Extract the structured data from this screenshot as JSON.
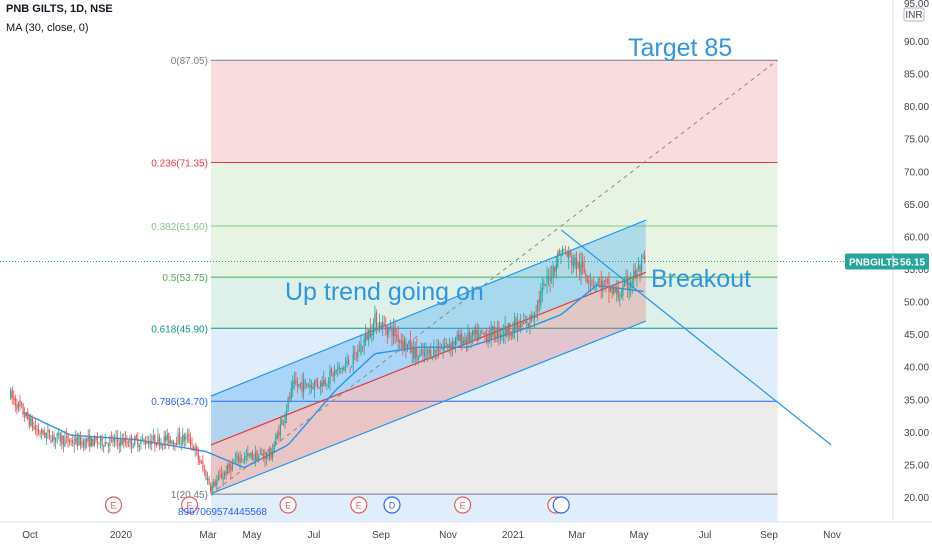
{
  "header": {
    "symbol_line": "PNB GILTS, 1D, NSE",
    "indicator_line": "MA (30, close, 0)"
  },
  "currency": "INR",
  "last_price_badge": {
    "symbol": "PNBGILTS",
    "price": "56.15",
    "value": 56.15
  },
  "y_axis": {
    "ticks": [
      20,
      25,
      30,
      35,
      40,
      45,
      50,
      55,
      60,
      65,
      70,
      75,
      80,
      85,
      90
    ],
    "tick_labels": [
      "20.00",
      "25.00",
      "30.00",
      "35.00",
      "40.00",
      "45.00",
      "50.00",
      "55.00",
      "60.00",
      "65.00",
      "70.00",
      "75.00",
      "80.00",
      "85.00",
      "90.00"
    ],
    "top_partial_label": "95.00"
  },
  "x_axis": {
    "labels": [
      "Oct",
      "2020",
      "Mar",
      "May",
      "Jul",
      "Sep",
      "Nov",
      "2021",
      "Mar",
      "May",
      "Jul",
      "Sep",
      "Nov"
    ]
  },
  "fib_levels": [
    {
      "ratio": "0",
      "price": 87.05,
      "label": "0(87.05)",
      "color": "#787b86"
    },
    {
      "ratio": "0.236",
      "price": 71.35,
      "label": "0.236(71.35)",
      "color": "#f23645"
    },
    {
      "ratio": "0.382",
      "price": 61.6,
      "label": "0.382(61.60)",
      "color": "#81c784"
    },
    {
      "ratio": "0.5",
      "price": 53.75,
      "label": "0.5(53.75)",
      "color": "#4caf50"
    },
    {
      "ratio": "0.618",
      "price": 45.9,
      "label": "0.618(45.90)",
      "color": "#089981"
    },
    {
      "ratio": "0.786",
      "price": 34.7,
      "label": "0.786(34.70)",
      "color": "#2962ff"
    },
    {
      "ratio": "1",
      "price": 20.45,
      "label": "1(20.45)",
      "color": "#787b86"
    }
  ],
  "fib_zone_colors": [
    "#f7d2d3",
    "#dff0da",
    "#dff0da",
    "#d2ece3",
    "#d5e8fa",
    "#e6e6e6"
  ],
  "annotations": {
    "target": "Target 85",
    "trend": "Up trend going on",
    "breakout": "Breakout"
  },
  "events": {
    "earnings_glyph": "E",
    "dividend_glyph": "D",
    "earnings_color": "#e35c5c",
    "dividend_color": "#2962ff"
  },
  "footer_id": "8967069574445568",
  "colors": {
    "up": "#26a69a",
    "down": "#ef5350",
    "ma": "#2196f3",
    "channel_upper": "#2196f3",
    "channel_lower": "#e57373",
    "accent": "#2f96e0"
  },
  "chart_data": {
    "type": "candlestick",
    "symbol": "PNB GILTS",
    "interval": "1D",
    "exchange": "NSE",
    "indicator": "MA (30, close, 0)",
    "ylim": [
      18,
      96
    ],
    "grid": false,
    "series": [
      {
        "name": "PNB GILTS",
        "type": "price",
        "approx_close_path": [
          [
            "2019-09-20",
            35.5
          ],
          [
            "2019-10-15",
            30.0
          ],
          [
            "2019-11-15",
            28.5
          ],
          [
            "2019-12-15",
            28.5
          ],
          [
            "2020-01-15",
            28.5
          ],
          [
            "2020-02-15",
            28.8
          ],
          [
            "2020-03-05",
            29.0
          ],
          [
            "2020-03-25",
            21.5
          ],
          [
            "2020-04-20",
            26.0
          ],
          [
            "2020-05-20",
            26.5
          ],
          [
            "2020-06-10",
            37.0
          ],
          [
            "2020-07-05",
            37.5
          ],
          [
            "2020-08-05",
            41.0
          ],
          [
            "2020-08-25",
            47.0
          ],
          [
            "2020-09-10",
            45.5
          ],
          [
            "2020-10-05",
            41.5
          ],
          [
            "2020-11-10",
            44.0
          ],
          [
            "2020-12-10",
            45.0
          ],
          [
            "2021-01-15",
            46.5
          ],
          [
            "2021-02-15",
            58.0
          ],
          [
            "2021-03-15",
            53.5
          ],
          [
            "2021-04-10",
            51.0
          ],
          [
            "2021-05-05",
            56.15
          ]
        ]
      },
      {
        "name": "MA (30, close, 0)",
        "type": "line",
        "approx_values": [
          [
            "2019-10-01",
            33.0
          ],
          [
            "2019-11-15",
            29.5
          ],
          [
            "2020-01-15",
            28.8
          ],
          [
            "2020-03-20",
            27.0
          ],
          [
            "2020-04-25",
            24.5
          ],
          [
            "2020-06-05",
            28.0
          ],
          [
            "2020-07-20",
            36.5
          ],
          [
            "2020-08-25",
            42.0
          ],
          [
            "2020-10-05",
            43.0
          ],
          [
            "2020-11-20",
            43.0
          ],
          [
            "2021-01-15",
            46.0
          ],
          [
            "2021-02-15",
            48.0
          ],
          [
            "2021-03-20",
            52.5
          ],
          [
            "2021-05-05",
            51.5
          ]
        ]
      }
    ],
    "channel": {
      "lower_start": [
        "2020-03-25",
        20.5
      ],
      "lower_end": [
        "2021-05-05",
        47.0
      ],
      "mid_start": [
        "2020-03-25",
        28.0
      ],
      "mid_end": [
        "2021-05-05",
        54.5
      ],
      "upper_start": [
        "2020-03-25",
        35.5
      ],
      "upper_end": [
        "2021-05-05",
        62.5
      ]
    },
    "breakout_line": {
      "start": [
        "2021-02-15",
        61.0
      ],
      "end": [
        "2021-10-25",
        28.0
      ]
    },
    "target_line": {
      "start": [
        "2020-03-25",
        20.45
      ],
      "end": [
        "2021-09-05",
        87.05
      ]
    },
    "earnings_dates": [
      "2019-12-25",
      "2020-03-05",
      "2020-06-05",
      "2020-08-10",
      "2020-11-15",
      "2021-02-10"
    ],
    "dividend_dates": [
      "2020-09-10",
      "2021-02-15"
    ]
  }
}
